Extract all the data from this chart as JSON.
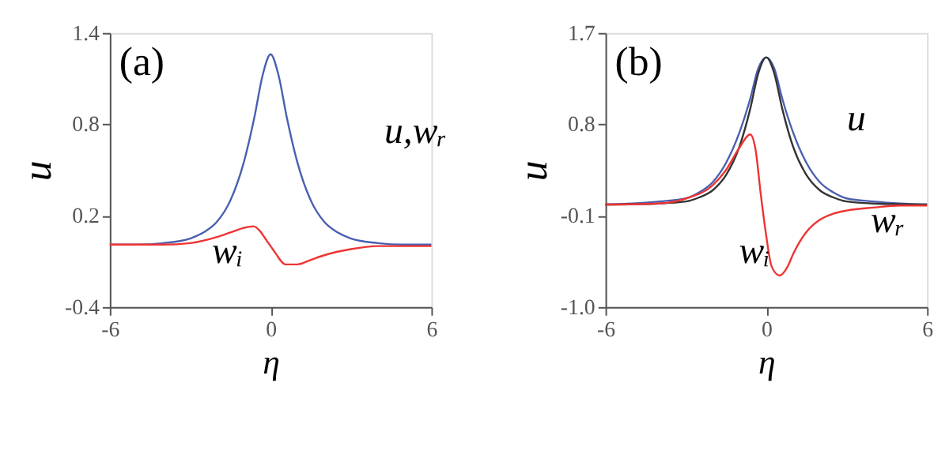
{
  "chart_data": [
    {
      "type": "line",
      "xlabel": "η",
      "ylabel": "u",
      "xlim": [
        -6,
        6
      ],
      "ylim": [
        -0.4,
        1.4
      ],
      "xticks": [
        -6,
        0,
        6
      ],
      "yticks": [
        -0.4,
        0.2,
        0.8,
        1.4
      ],
      "grid": false,
      "marker": "none",
      "line_style": "solid",
      "annotations": [
        "(a)",
        "u,wᵣ",
        "wᵢ"
      ],
      "series": [
        {
          "color": "#4a5fb0",
          "x": [
            -6,
            -5,
            -4,
            -3,
            -2.5,
            -2,
            -1.5,
            -1,
            -0.6,
            -0.3,
            0,
            0.3,
            0.6,
            1,
            1.5,
            2,
            2.5,
            3,
            4,
            5,
            6
          ],
          "values": [
            0.01,
            0.01,
            0.02,
            0.05,
            0.09,
            0.16,
            0.3,
            0.55,
            0.85,
            1.12,
            1.26,
            1.12,
            0.85,
            0.55,
            0.3,
            0.16,
            0.09,
            0.05,
            0.02,
            0.01,
            0.01
          ]
        },
        {
          "color": "#ee3333",
          "x": [
            -6,
            -4,
            -3,
            -2,
            -1.5,
            -1,
            -0.64,
            -0.4,
            -0.2,
            0,
            0.2,
            0.4,
            0.56,
            1,
            1.5,
            2,
            3,
            4,
            6
          ],
          "values": [
            0.01,
            0.01,
            0.02,
            0.06,
            0.09,
            0.12,
            0.13,
            0.1,
            0.05,
            0,
            -0.05,
            -0.1,
            -0.12,
            -0.12,
            -0.09,
            -0.06,
            -0.02,
            0,
            0
          ]
        }
      ]
    },
    {
      "type": "line",
      "xlabel": "η",
      "ylabel": "u",
      "xlim": [
        -6,
        6
      ],
      "ylim": [
        -1.0,
        1.7
      ],
      "xticks": [
        -6,
        0,
        6
      ],
      "yticks": [
        {
          "value": -1.0,
          "label": "-1.0"
        },
        -0.1,
        0.8,
        1.7
      ],
      "grid": false,
      "marker": "none",
      "line_style": "solid",
      "annotations": [
        "(b)",
        "u",
        "wᵣ",
        "wᵢ"
      ],
      "series": [
        {
          "color": "#4a5fb0",
          "x": [
            -6,
            -5,
            -4,
            -3,
            -2.5,
            -2,
            -1.5,
            -1,
            -0.6,
            -0.3,
            0,
            0.3,
            0.6,
            1,
            1.5,
            2,
            2.5,
            3,
            4,
            5,
            6
          ],
          "values": [
            0.01,
            0.02,
            0.04,
            0.07,
            0.13,
            0.23,
            0.42,
            0.72,
            1.05,
            1.35,
            1.46,
            1.35,
            1.05,
            0.72,
            0.42,
            0.23,
            0.13,
            0.07,
            0.04,
            0.02,
            0.01
          ]
        },
        {
          "color": "#333333",
          "x": [
            -6,
            -4,
            -3,
            -2.5,
            -2,
            -1.5,
            -1,
            -0.6,
            -0.3,
            0,
            0.3,
            0.6,
            1,
            1.5,
            2,
            2.5,
            3,
            4,
            6
          ],
          "values": [
            0.01,
            0.02,
            0.04,
            0.08,
            0.15,
            0.3,
            0.58,
            0.95,
            1.3,
            1.46,
            1.3,
            0.95,
            0.58,
            0.3,
            0.15,
            0.08,
            0.04,
            0.02,
            0.01
          ]
        },
        {
          "color": "#ee3333",
          "x": [
            -6,
            -4,
            -3,
            -2,
            -1.5,
            -1,
            -0.6,
            -0.4,
            -0.2,
            0,
            0.2,
            0.5,
            0.8,
            1,
            1.5,
            2,
            2.5,
            3,
            4,
            5,
            6
          ],
          "values": [
            0.01,
            0.02,
            0.07,
            0.2,
            0.35,
            0.57,
            0.7,
            0.55,
            0.1,
            -0.3,
            -0.6,
            -0.69,
            -0.6,
            -0.48,
            -0.26,
            -0.14,
            -0.08,
            -0.05,
            -0.02,
            0,
            0
          ]
        }
      ]
    }
  ]
}
